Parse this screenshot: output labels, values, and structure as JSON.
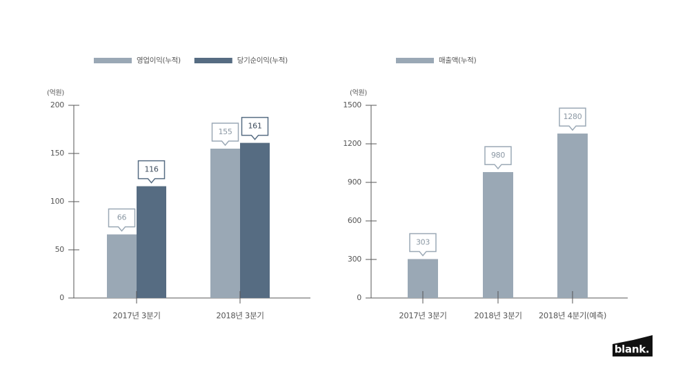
{
  "chart_data": [
    {
      "type": "bar",
      "unit_label": "(억원)",
      "categories": [
        "2017년 3분기",
        "2018년 3분기"
      ],
      "series": [
        {
          "name": "영업이익(누적)",
          "color": "#9aa8b5",
          "values": [
            66,
            155
          ]
        },
        {
          "name": "당기순이익(누적)",
          "color": "#566c82",
          "values": [
            116,
            161
          ]
        }
      ],
      "ylim": [
        0,
        200
      ],
      "yticks": [
        0,
        50,
        100,
        150,
        200
      ]
    },
    {
      "type": "bar",
      "unit_label": "(억원)",
      "categories": [
        "2017년 3분기",
        "2018년 3분기",
        "2018년 4분기(예측)"
      ],
      "series": [
        {
          "name": "매출액(누적)",
          "color": "#9aa8b5",
          "values": [
            303,
            980,
            1280
          ]
        }
      ],
      "ylim": [
        0,
        1500
      ],
      "yticks": [
        0,
        300,
        600,
        900,
        1200,
        1500
      ]
    }
  ],
  "logo": "blank."
}
